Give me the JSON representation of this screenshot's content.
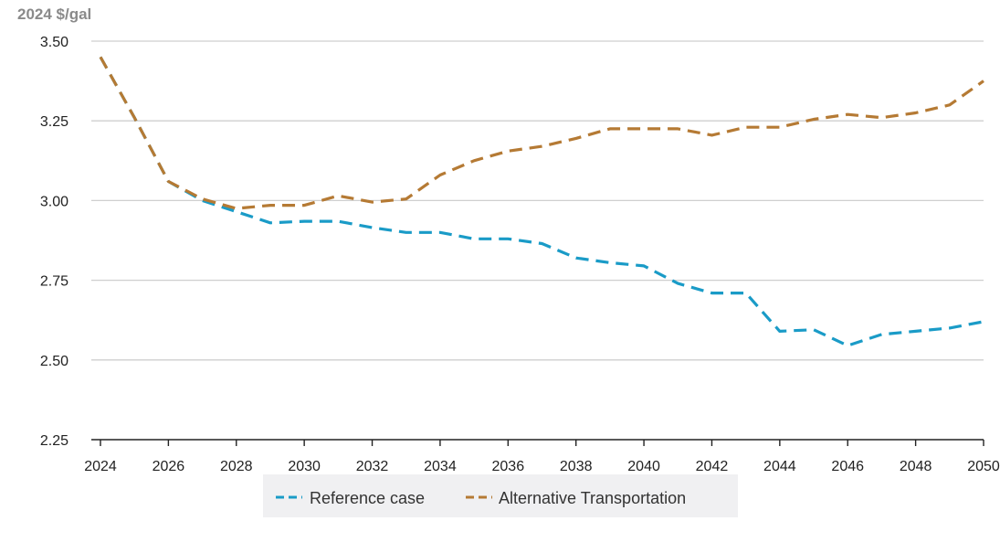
{
  "chart_data": {
    "type": "line",
    "title": "",
    "ylabel": "2024 $/gal",
    "xlabel": "",
    "ylim": [
      2.25,
      3.5
    ],
    "yticks": [
      "3.50",
      "3.25",
      "3.00",
      "2.75",
      "2.50",
      "2.25"
    ],
    "ytick_values": [
      3.5,
      3.25,
      3.0,
      2.75,
      2.5,
      2.25
    ],
    "xticks": [
      "2024",
      "2026",
      "2028",
      "2030",
      "2032",
      "2034",
      "2036",
      "2038",
      "2040",
      "2042",
      "2044",
      "2046",
      "2048",
      "2050"
    ],
    "xtick_values": [
      2024,
      2026,
      2028,
      2030,
      2032,
      2034,
      2036,
      2038,
      2040,
      2042,
      2044,
      2046,
      2048,
      2050
    ],
    "x": [
      2024,
      2025,
      2026,
      2027,
      2028,
      2029,
      2030,
      2031,
      2032,
      2033,
      2034,
      2035,
      2036,
      2037,
      2038,
      2039,
      2040,
      2041,
      2042,
      2043,
      2044,
      2045,
      2046,
      2047,
      2048,
      2049,
      2050
    ],
    "grid": true,
    "legend_position": "bottom-center",
    "series": [
      {
        "name": "Reference case",
        "color": "#1a9bc7",
        "values": [
          3.45,
          3.26,
          3.06,
          3.0,
          2.965,
          2.93,
          2.935,
          2.935,
          2.915,
          2.9,
          2.9,
          2.88,
          2.88,
          2.865,
          2.82,
          2.805,
          2.795,
          2.74,
          2.71,
          2.71,
          2.59,
          2.595,
          2.545,
          2.58,
          2.59,
          2.6,
          2.62
        ]
      },
      {
        "name": "Alternative Transportation",
        "color": "#b57a34",
        "values": [
          3.45,
          3.26,
          3.06,
          3.005,
          2.975,
          2.985,
          2.985,
          3.015,
          2.995,
          3.005,
          3.08,
          3.125,
          3.155,
          3.17,
          3.195,
          3.225,
          3.225,
          3.225,
          3.205,
          3.23,
          3.23,
          3.255,
          3.27,
          3.26,
          3.275,
          3.3,
          3.375
        ]
      }
    ]
  }
}
